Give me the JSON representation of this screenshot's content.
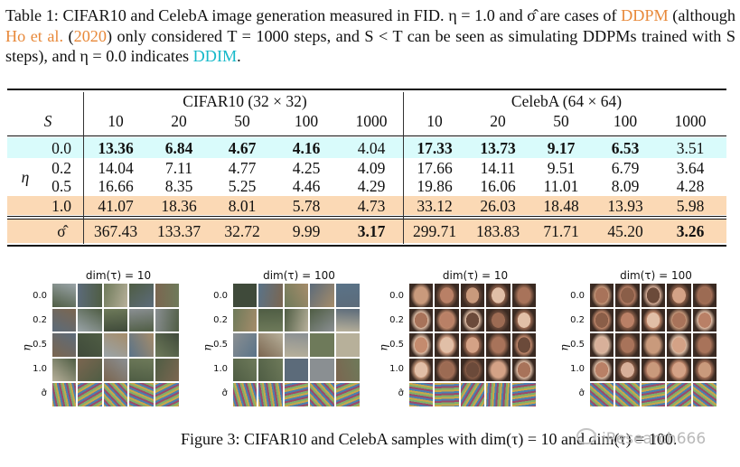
{
  "caption": {
    "p1": "Table 1: CIFAR10 and CelebA image generation measured in FID. η = 1.0 and σ̂ are cases of ",
    "ddpm": "DDPM",
    "p2": " (although ",
    "ho": "Ho et al.",
    "p3": " (",
    "year": "2020",
    "p4": ") only considered T = 1000 steps, and S < T can be seen as simulating DDPMs trained with S steps), and η = 0.0 indicates ",
    "ddim": "DDIM",
    "p5": "."
  },
  "colors": {
    "link_orange": "#e8893a",
    "link_cyan": "#17b9c9",
    "row_cyan": "#d9fbfb",
    "row_orange": "#fbd9b5"
  },
  "table": {
    "group_left": "CIFAR10 (32 × 32)",
    "group_right": "CelebA (64 × 64)",
    "s_label": "S",
    "eta_label": "η",
    "steps": [
      "10",
      "20",
      "50",
      "100",
      "1000"
    ],
    "rows": [
      {
        "eta": "0.0",
        "cifar": [
          "13.36",
          "6.84",
          "4.67",
          "4.16",
          "4.04"
        ],
        "celeba": [
          "17.33",
          "13.73",
          "9.17",
          "6.53",
          "3.51"
        ],
        "bold_c": [
          true,
          true,
          true,
          true,
          false
        ],
        "bold_e": [
          true,
          true,
          true,
          true,
          false
        ]
      },
      {
        "eta": "0.2",
        "cifar": [
          "14.04",
          "7.11",
          "4.77",
          "4.25",
          "4.09"
        ],
        "celeba": [
          "17.66",
          "14.11",
          "9.51",
          "6.79",
          "3.64"
        ],
        "bold_c": [
          false,
          false,
          false,
          false,
          false
        ],
        "bold_e": [
          false,
          false,
          false,
          false,
          false
        ]
      },
      {
        "eta": "0.5",
        "cifar": [
          "16.66",
          "8.35",
          "5.25",
          "4.46",
          "4.29"
        ],
        "celeba": [
          "19.86",
          "16.06",
          "11.01",
          "8.09",
          "4.28"
        ],
        "bold_c": [
          false,
          false,
          false,
          false,
          false
        ],
        "bold_e": [
          false,
          false,
          false,
          false,
          false
        ]
      },
      {
        "eta": "1.0",
        "cifar": [
          "41.07",
          "18.36",
          "8.01",
          "5.78",
          "4.73"
        ],
        "celeba": [
          "33.12",
          "26.03",
          "18.48",
          "13.93",
          "5.98"
        ],
        "bold_c": [
          false,
          false,
          false,
          false,
          false
        ],
        "bold_e": [
          false,
          false,
          false,
          false,
          false
        ]
      },
      {
        "eta": "σ̂",
        "cifar": [
          "367.43",
          "133.37",
          "32.72",
          "9.99",
          "3.17"
        ],
        "celeba": [
          "299.71",
          "183.83",
          "71.71",
          "45.20",
          "3.26"
        ],
        "bold_c": [
          false,
          false,
          false,
          false,
          true
        ],
        "bold_e": [
          false,
          false,
          false,
          false,
          true
        ]
      }
    ]
  },
  "figures": [
    {
      "title": "dim(τ) = 10",
      "kind": "cifar"
    },
    {
      "title": "dim(τ) = 100",
      "kind": "cifar"
    },
    {
      "title": "dim(τ) = 10",
      "kind": "celeba"
    },
    {
      "title": "dim(τ) = 100",
      "kind": "celeba"
    }
  ],
  "fig_row_labels": [
    "0.0",
    "0.2",
    "0.5",
    "1.0",
    "σ̂"
  ],
  "fig_eta_label": "η",
  "figure3_caption": "Figure 3: CIFAR10 and CelebA samples with dim(τ) = 10 and dim(τ) = 100.",
  "watermark": "iResearch666"
}
